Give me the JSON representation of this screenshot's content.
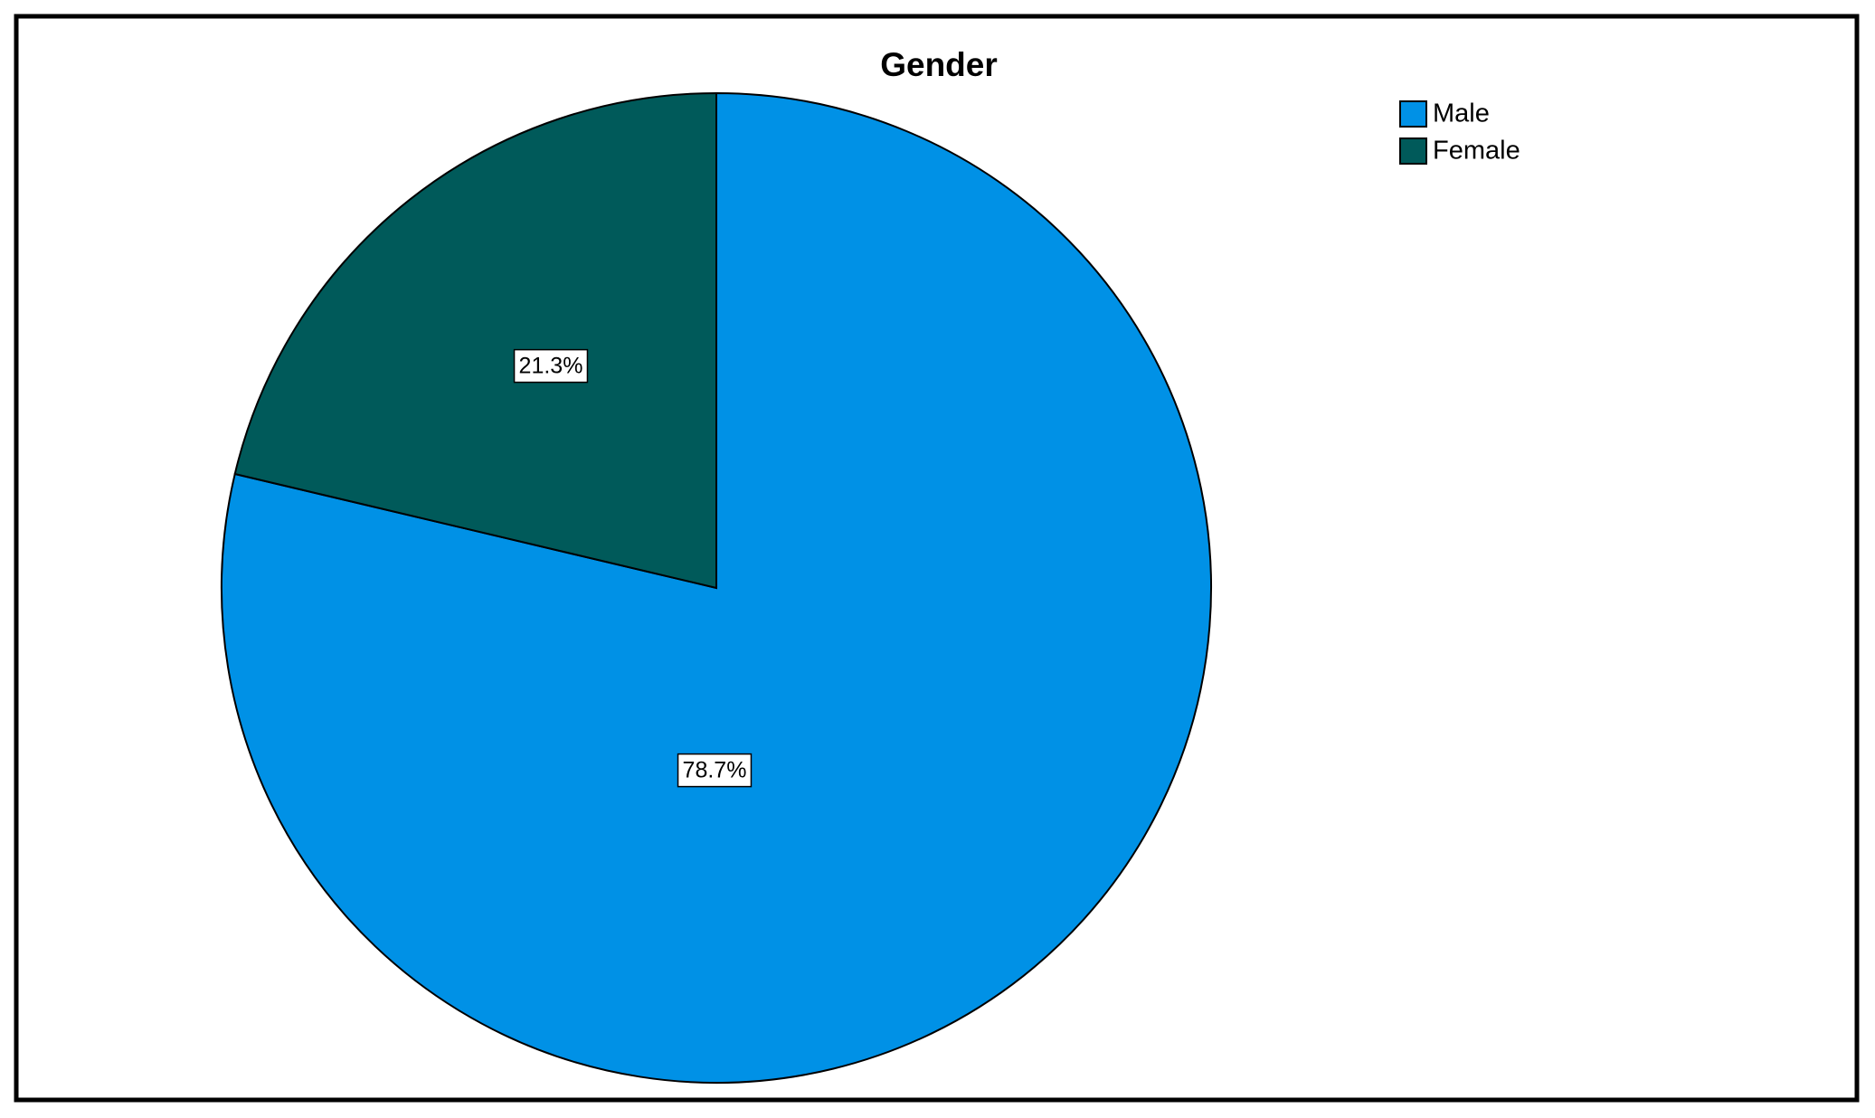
{
  "chart_data": {
    "type": "pie",
    "title": "Gender",
    "categories": [
      "Male",
      "Female"
    ],
    "values": [
      78.7,
      21.3
    ],
    "value_labels": [
      "78.7%",
      "21.3%"
    ],
    "colors": [
      "#0091e6",
      "#005a5a"
    ],
    "legend": "top-right"
  }
}
